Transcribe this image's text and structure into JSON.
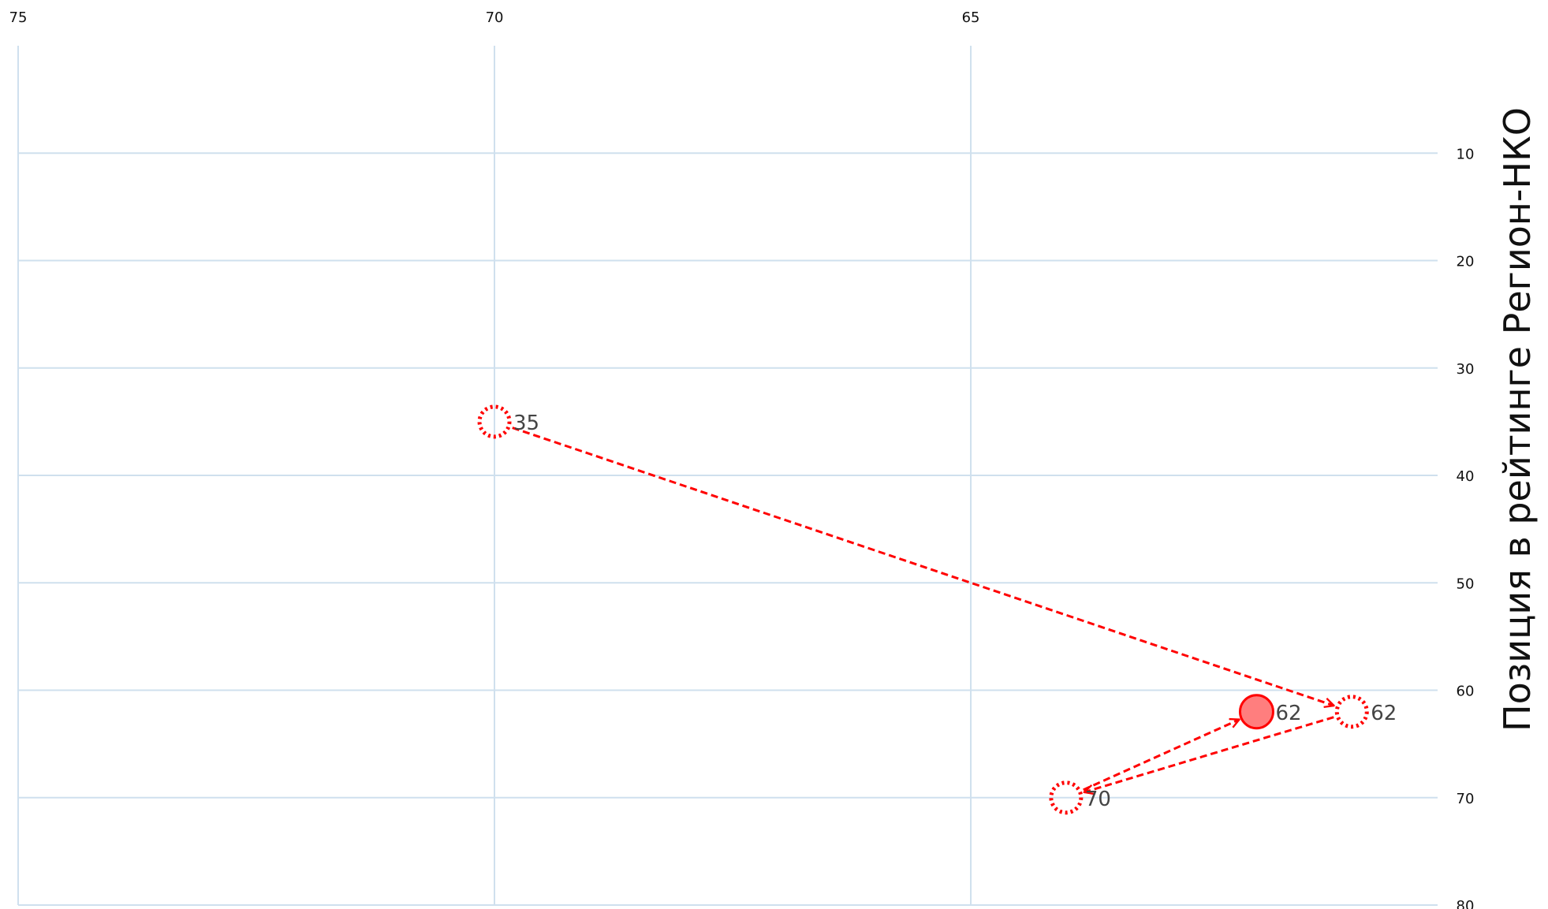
{
  "chart_data": {
    "type": "scatter",
    "title": "",
    "xlabel": "",
    "ylabel": "Позиция в рейтинге Регион-НКО",
    "xlim": [
      75,
      60.1
    ],
    "ylim": [
      0,
      80
    ],
    "x_ticks": [
      "75",
      "70",
      "65"
    ],
    "x_tick_values": [
      75,
      70,
      65
    ],
    "y_ticks": [
      "10",
      "20",
      "30",
      "40",
      "50",
      "60",
      "70",
      "80"
    ],
    "y_tick_values": [
      10,
      20,
      30,
      40,
      50,
      60,
      70,
      80
    ],
    "grid": true,
    "accent_color": "#ff0000",
    "grid_color": "#cfe0ee",
    "points": [
      {
        "x": 70.0,
        "y": 35,
        "label": "35",
        "style": "dotted"
      },
      {
        "x": 61.0,
        "y": 62,
        "label": "62",
        "style": "dotted"
      },
      {
        "x": 64.0,
        "y": 70,
        "label": "70",
        "style": "dotted"
      },
      {
        "x": 62.0,
        "y": 62,
        "label": "62",
        "style": "filled"
      }
    ],
    "arrows": [
      [
        0,
        1
      ],
      [
        1,
        2
      ],
      [
        2,
        3
      ]
    ]
  }
}
